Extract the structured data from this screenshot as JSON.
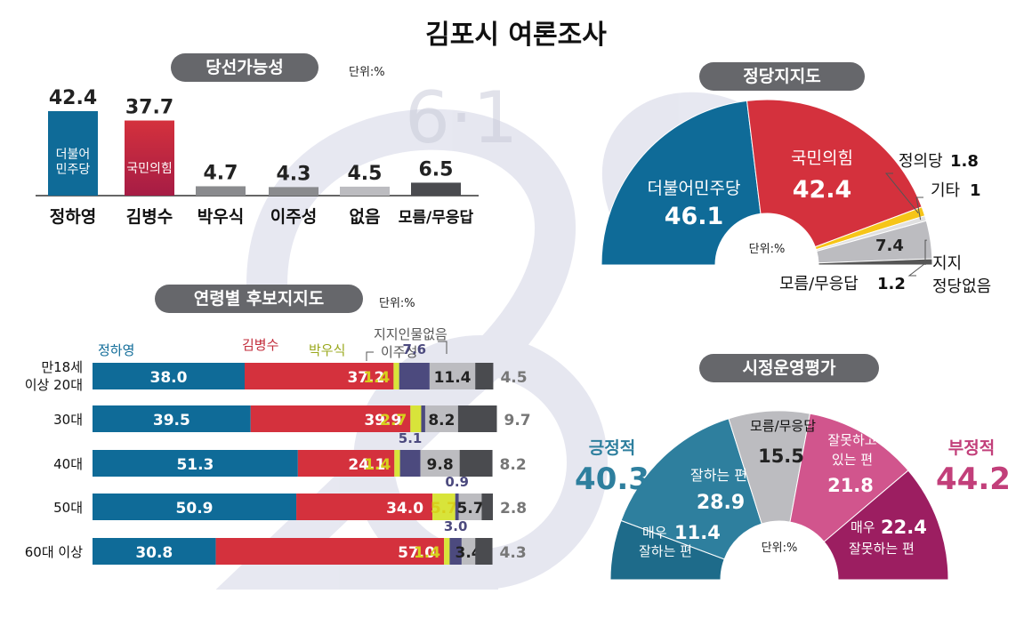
{
  "page": {
    "title": "김포시 여론조사"
  },
  "colors": {
    "dem": "#0f6b98",
    "ppp": "#d4313d",
    "ppp_dark": "#a61c45",
    "yellow": "#d8e43a",
    "grey": "#8a8b8e",
    "dark": "#4a4b4f",
    "purple": "#4c4a7e",
    "pos": "#2e7f9e",
    "neg": "#c23f7a",
    "justice": "#f6c518",
    "lightgrey": "#bcbcc0"
  },
  "chart_data": [
    {
      "id": "win",
      "type": "bar",
      "title": "당선가능성",
      "unit": "단위:%",
      "categories": [
        "정하영",
        "김병수",
        "박우식",
        "이주성",
        "없음",
        "모름/무응답"
      ],
      "values": [
        42.4,
        37.7,
        4.7,
        4.3,
        4.5,
        6.5
      ],
      "inbar_labels": [
        "더불어\n민주당",
        "국민의힘",
        "",
        "",
        "",
        ""
      ]
    },
    {
      "id": "party",
      "type": "pie",
      "title": "정당지지도",
      "unit": "단위:%",
      "slices": [
        {
          "name": "더불어민주당",
          "value": 46.1
        },
        {
          "name": "국민의힘",
          "value": 42.4
        },
        {
          "name": "정의당",
          "value": 1.8
        },
        {
          "name": "기타",
          "value": 1.0
        },
        {
          "name": "지지 정당없음",
          "value": 7.4
        },
        {
          "name": "모름/무응답",
          "value": 1.2
        }
      ]
    },
    {
      "id": "age",
      "type": "bar",
      "title": "연령별 후보지지도",
      "unit": "단위:%",
      "categories": [
        "만18세 이상 20대",
        "30대",
        "40대",
        "50대",
        "60대 이상"
      ],
      "series": [
        {
          "name": "정하영",
          "values": [
            38.0,
            39.5,
            51.3,
            50.9,
            30.8
          ]
        },
        {
          "name": "김병수",
          "values": [
            37.2,
            39.9,
            24.1,
            34.0,
            57.0
          ]
        },
        {
          "name": "박우식",
          "values": [
            1.4,
            2.7,
            1.4,
            5.7,
            1.4
          ]
        },
        {
          "name": "이주성",
          "values": [
            7.6,
            1.0,
            5.1,
            0.9,
            3.0
          ]
        },
        {
          "name": "지지인물없음",
          "values": [
            11.4,
            8.2,
            9.8,
            5.7,
            3.4
          ]
        },
        {
          "name": "",
          "values": [
            4.5,
            9.7,
            8.2,
            2.8,
            4.3
          ]
        }
      ],
      "value_labels": [
        [
          "38.0",
          "37.2",
          "1.4",
          "7.6",
          "11.4",
          "4.5"
        ],
        [
          "39.5",
          "39.9",
          "2.7",
          "",
          "8.2",
          "9.7"
        ],
        [
          "51.3",
          "24.1",
          "1.4",
          "5.1",
          "9.8",
          "8.2"
        ],
        [
          "50.9",
          "34.0",
          "5.7",
          "0.9",
          "5.7",
          "2.8"
        ],
        [
          "30.8",
          "57.0",
          "1.4",
          "3.0",
          "3.4",
          "4.3"
        ]
      ]
    },
    {
      "id": "eval",
      "type": "pie",
      "title": "시정운영평가",
      "unit": "단위:%",
      "groups": [
        {
          "name": "긍정적",
          "value": 40.3
        },
        {
          "name": "부정적",
          "value": 44.2
        }
      ],
      "slices": [
        {
          "name": "매우 잘하는 편",
          "prefix": "매우",
          "suffix": "잘하는 편",
          "value": 11.4
        },
        {
          "name": "잘하는 편",
          "value": 28.9
        },
        {
          "name": "모름/무응답",
          "value": 15.5
        },
        {
          "name": "잘못하고 있는 편",
          "value": 21.8
        },
        {
          "name": "매우 잘못하는 편",
          "prefix": "매우",
          "suffix": "잘못하는 편",
          "value": 22.4
        }
      ]
    }
  ],
  "decor": {
    "watermark": "6·1"
  }
}
